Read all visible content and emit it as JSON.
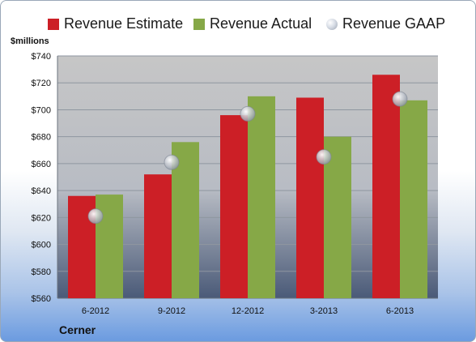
{
  "legend": {
    "estimate": "Revenue Estimate",
    "actual": "Revenue Actual",
    "gaap": "Revenue GAAP"
  },
  "unit_label": "$millions",
  "company": "Cerner",
  "colors": {
    "estimate": "#cc1f26",
    "actual": "#86a847",
    "gaap": "#c9cdd4",
    "plot_top": "#c6c6c6",
    "plot_bottom": "#4a5a78"
  },
  "chart_data": {
    "type": "bar",
    "categories": [
      "6-2012",
      "9-2012",
      "12-2012",
      "3-2013",
      "6-2013"
    ],
    "series": [
      {
        "name": "Revenue Estimate",
        "values": [
          636,
          652,
          696,
          709,
          726
        ]
      },
      {
        "name": "Revenue Actual",
        "values": [
          637,
          676,
          710,
          680,
          707
        ]
      },
      {
        "name": "Revenue GAAP",
        "values": [
          621,
          661,
          697,
          665,
          708
        ]
      }
    ],
    "ylabel": "$millions",
    "ylim": [
      560,
      740
    ],
    "yticks": [
      "$560",
      "$580",
      "$600",
      "$620",
      "$640",
      "$660",
      "$680",
      "$700",
      "$720",
      "$740"
    ],
    "grid": true,
    "legend_position": "top"
  }
}
